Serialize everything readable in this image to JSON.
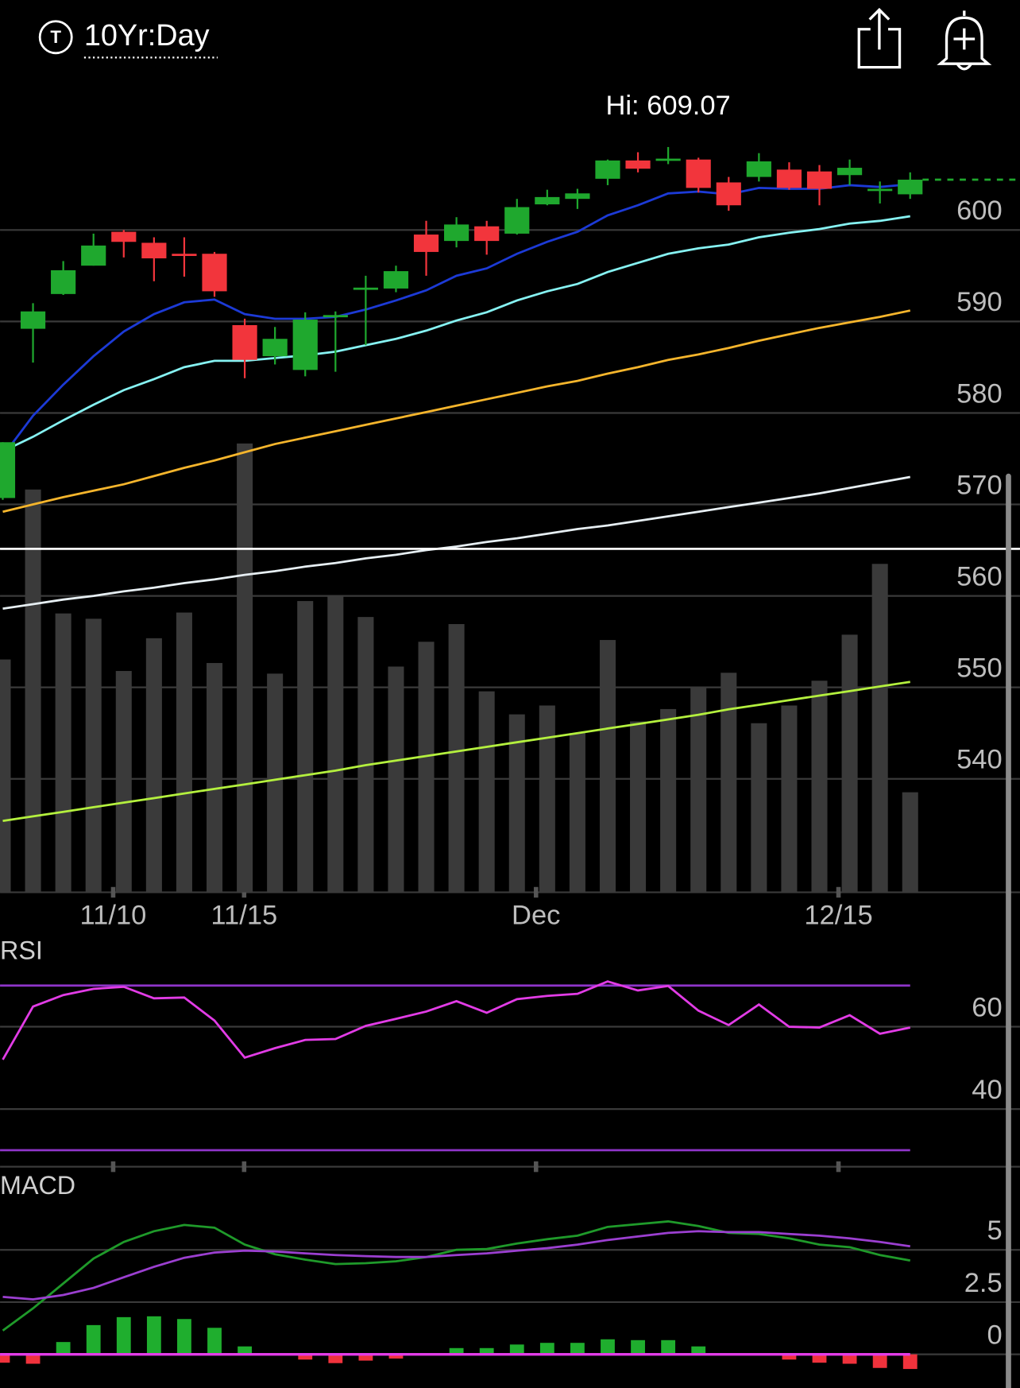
{
  "header": {
    "icon": "T",
    "title": "10Yr:Day"
  },
  "chart_data": [
    {
      "type": "candlestick",
      "x": [
        0,
        1,
        2,
        3,
        4,
        5,
        6,
        7,
        8,
        9,
        10,
        11,
        12,
        13,
        14,
        15,
        16,
        17,
        18,
        19,
        20,
        21,
        22,
        23,
        24,
        25,
        26,
        27,
        28,
        29,
        30
      ],
      "open": [
        570.7,
        589.2,
        593.0,
        596.1,
        599.8,
        598.6,
        597.4,
        597.4,
        589.6,
        586.2,
        584.7,
        590.5,
        593.5,
        593.6,
        599.5,
        598.8,
        600.4,
        599.6,
        602.8,
        603.4,
        605.6,
        607.6,
        607.7,
        607.7,
        605.2,
        605.8,
        606.6,
        606.4,
        606.0,
        604.4,
        603.9
      ],
      "high": [
        576.8,
        592.0,
        596.6,
        599.6,
        600.0,
        599.2,
        599.2,
        597.6,
        590.3,
        589.4,
        591.0,
        591.1,
        595.0,
        596.1,
        601.0,
        601.4,
        601.0,
        603.4,
        604.4,
        604.5,
        607.7,
        608.5,
        609.07,
        607.9,
        605.8,
        608.4,
        607.4,
        607.1,
        607.7,
        605.3,
        606.3
      ],
      "low": [
        570.5,
        585.5,
        592.9,
        596.1,
        597.0,
        594.4,
        594.9,
        592.7,
        583.8,
        585.3,
        584.0,
        584.5,
        587.4,
        593.2,
        595.0,
        598.1,
        597.3,
        599.5,
        602.7,
        602.3,
        604.9,
        606.3,
        607.2,
        604.1,
        602.1,
        605.3,
        604.4,
        602.7,
        604.9,
        602.9,
        603.4
      ],
      "close": [
        576.8,
        591.1,
        595.6,
        598.3,
        598.7,
        596.9,
        597.2,
        593.3,
        585.8,
        588.1,
        590.2,
        590.7,
        593.7,
        595.5,
        597.6,
        600.6,
        598.8,
        602.5,
        603.6,
        604.0,
        607.6,
        606.7,
        607.8,
        604.6,
        602.7,
        607.5,
        604.6,
        604.5,
        606.8,
        604.5,
        605.5
      ],
      "up_color": "#1fa82e",
      "down_color": "#f2353c",
      "volume": [
        26.3,
        45.5,
        31.5,
        30.9,
        25.0,
        28.7,
        31.6,
        25.9,
        50.7,
        24.7,
        32.9,
        33.5,
        31.1,
        25.5,
        28.3,
        30.3,
        22.7,
        20.1,
        21.1,
        18.0,
        28.5,
        19.3,
        20.7,
        23.2,
        24.8,
        19.1,
        21.1,
        23.9,
        29.1,
        37.1,
        11.3
      ],
      "volume_ylim": [
        0,
        92.8
      ],
      "volume_color": "#3a3a3a",
      "series": [
        {
          "color": "#1c3ad6",
          "values": [
            575.3,
            579.7,
            583.1,
            586.2,
            588.9,
            590.8,
            592.1,
            592.4,
            590.8,
            590.3,
            590.3,
            590.5,
            591.3,
            592.3,
            593.4,
            595.0,
            595.8,
            597.4,
            598.7,
            599.8,
            601.6,
            602.7,
            604.0,
            604.2,
            603.9,
            604.6,
            604.5,
            604.5,
            604.9,
            604.7,
            605.0
          ]
        },
        {
          "color": "#86f2f2",
          "values": [
            575.8,
            577.4,
            579.2,
            580.9,
            582.5,
            583.7,
            585.0,
            585.7,
            585.7,
            586.0,
            586.3,
            586.7,
            587.4,
            588.1,
            589.0,
            590.1,
            591.0,
            592.3,
            593.3,
            594.1,
            595.4,
            596.4,
            597.4,
            598.0,
            598.4,
            599.2,
            599.7,
            600.1,
            600.7,
            601.0,
            601.5
          ]
        },
        {
          "color": "#f5b52c",
          "values": [
            569.2,
            570.0,
            570.8,
            571.5,
            572.2,
            573.1,
            574.0,
            574.8,
            575.7,
            576.6,
            577.3,
            578.0,
            578.7,
            579.4,
            580.1,
            580.8,
            581.5,
            582.2,
            582.9,
            583.5,
            584.3,
            585.0,
            585.8,
            586.4,
            587.1,
            587.9,
            588.6,
            589.3,
            589.9,
            590.5,
            591.2
          ]
        },
        {
          "color": "#e6eef2",
          "values": [
            558.6,
            559.1,
            559.6,
            560.0,
            560.5,
            560.9,
            561.4,
            561.8,
            562.3,
            562.7,
            563.2,
            563.6,
            564.1,
            564.5,
            565.0,
            565.4,
            565.9,
            566.3,
            566.8,
            567.3,
            567.7,
            568.2,
            568.7,
            569.2,
            569.7,
            570.2,
            570.7,
            571.2,
            571.8,
            572.4,
            573.0
          ]
        },
        {
          "color": "#b4f03e",
          "values": [
            535.4,
            535.9,
            536.4,
            536.9,
            537.4,
            537.9,
            538.4,
            538.9,
            539.4,
            539.9,
            540.4,
            540.9,
            541.5,
            542.0,
            542.5,
            543.0,
            543.5,
            544.0,
            544.5,
            545.0,
            545.5,
            546.0,
            546.5,
            547.0,
            547.6,
            548.1,
            548.6,
            549.1,
            549.6,
            550.1,
            550.6
          ]
        }
      ],
      "last_price_line": "dashed",
      "annotations": [
        {
          "text": "Hi: 609.07",
          "x": 22,
          "y": 609.07
        }
      ],
      "xlim": [
        -0.09,
        33.63
      ],
      "xticks": [
        {
          "value": 3.65,
          "label": "11/10"
        },
        {
          "value": 7.98,
          "label": "11/15"
        },
        {
          "value": 17.63,
          "label": "Dec"
        },
        {
          "value": 27.63,
          "label": "12/15"
        }
      ],
      "ylim": [
        527.6,
        617.4
      ],
      "yticks": [
        540,
        550,
        560,
        570,
        580,
        590,
        600
      ],
      "grid": true
    },
    {
      "type": "line",
      "title": "RSI",
      "x": [
        0,
        1,
        2,
        3,
        4,
        5,
        6,
        7,
        8,
        9,
        10,
        11,
        12,
        13,
        14,
        15,
        16,
        17,
        18,
        19,
        20,
        21,
        22,
        23,
        24,
        25,
        26,
        27,
        28,
        29,
        30
      ],
      "series": [
        {
          "color": "#e23ce6",
          "values": [
            52.0,
            64.9,
            67.7,
            69.2,
            69.7,
            66.9,
            67.1,
            61.5,
            52.5,
            54.8,
            56.8,
            57.0,
            60.2,
            61.9,
            63.7,
            66.2,
            63.4,
            66.7,
            67.5,
            68.0,
            71.0,
            68.8,
            69.9,
            63.9,
            60.4,
            65.4,
            60.0,
            59.8,
            62.8,
            58.3,
            59.8
          ]
        }
      ],
      "levels": [
        30,
        70
      ],
      "level_color": "#8e35c8",
      "xlim": [
        -0.09,
        33.63
      ],
      "ylim": [
        26,
        80.4
      ],
      "yticks": [
        40,
        60
      ],
      "grid": true
    },
    {
      "type": "line",
      "title": "MACD",
      "x": [
        0,
        1,
        2,
        3,
        4,
        5,
        6,
        7,
        8,
        9,
        10,
        11,
        12,
        13,
        14,
        15,
        16,
        17,
        18,
        19,
        20,
        21,
        22,
        23,
        24,
        25,
        26,
        27,
        28,
        29,
        30
      ],
      "series": [
        {
          "color": "#1f9a2a",
          "values": [
            1.14,
            2.2,
            3.39,
            4.58,
            5.38,
            5.89,
            6.19,
            6.06,
            5.25,
            4.79,
            4.53,
            4.32,
            4.36,
            4.45,
            4.66,
            5.0,
            5.04,
            5.3,
            5.51,
            5.68,
            6.1,
            6.23,
            6.36,
            6.14,
            5.81,
            5.76,
            5.55,
            5.25,
            5.13,
            4.75,
            4.49
          ]
        },
        {
          "color": "#9b3fd0",
          "values": [
            2.75,
            2.63,
            2.84,
            3.18,
            3.69,
            4.19,
            4.62,
            4.87,
            4.96,
            4.92,
            4.83,
            4.75,
            4.7,
            4.66,
            4.66,
            4.75,
            4.83,
            4.96,
            5.08,
            5.25,
            5.47,
            5.64,
            5.81,
            5.89,
            5.85,
            5.85,
            5.76,
            5.68,
            5.55,
            5.38,
            5.17
          ]
        }
      ],
      "histogram": {
        "values": [
          -0.4,
          -0.45,
          0.59,
          1.4,
          1.78,
          1.82,
          1.69,
          1.27,
          0.38,
          0,
          -0.25,
          -0.42,
          -0.3,
          -0.2,
          0,
          0.3,
          0.3,
          0.47,
          0.55,
          0.55,
          0.72,
          0.68,
          0.68,
          0.38,
          0,
          0,
          -0.25,
          -0.4,
          -0.45,
          -0.65,
          -0.7
        ],
        "up_color": "#1fae2e",
        "down_color": "#f0323c"
      },
      "xlim": [
        -0.09,
        33.63
      ],
      "ylim": [
        -1.61,
        8.47
      ],
      "yticks": [
        0,
        2.5,
        5
      ],
      "grid": true
    }
  ]
}
